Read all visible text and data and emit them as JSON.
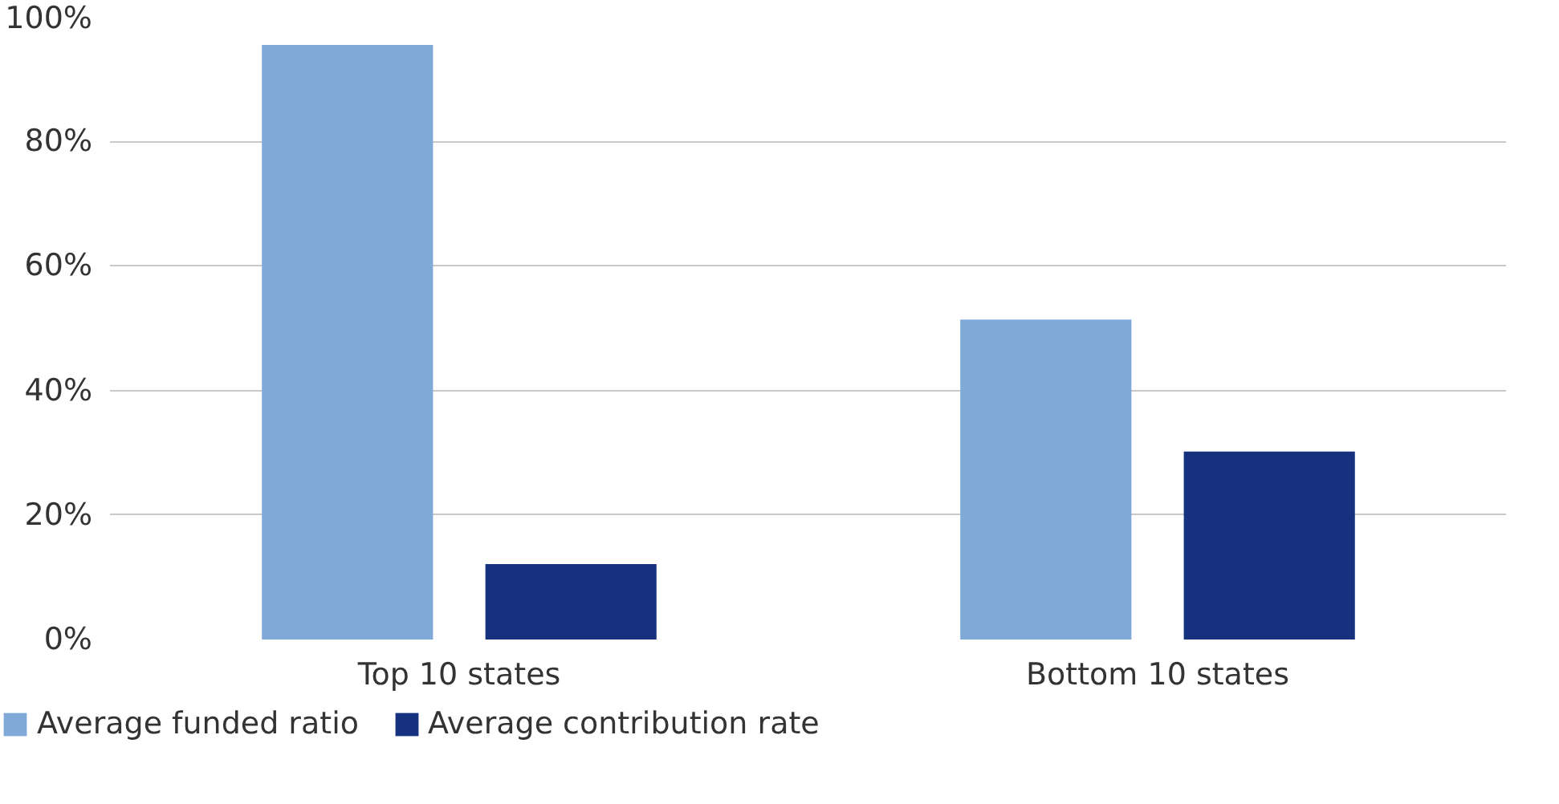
{
  "chart_data": {
    "type": "bar",
    "categories": [
      "Top 10 states",
      "Bottom 10 states"
    ],
    "series": [
      {
        "name": "Average funded ratio",
        "color": "#80a9d7",
        "values": [
          95.5,
          51.4
        ]
      },
      {
        "name": "Average contribution rate",
        "color": "#16317d",
        "values": [
          12.1,
          30.2
        ]
      }
    ],
    "ylim": [
      0,
      100
    ],
    "yticks": [
      {
        "value": 0,
        "label": "0%"
      },
      {
        "value": 20,
        "label": "20%"
      },
      {
        "value": 40,
        "label": "40%"
      },
      {
        "value": 60,
        "label": "60%"
      },
      {
        "value": 80,
        "label": "80%"
      },
      {
        "value": 100,
        "label": "100%"
      }
    ],
    "grid": "y",
    "legend": "bottom left"
  }
}
